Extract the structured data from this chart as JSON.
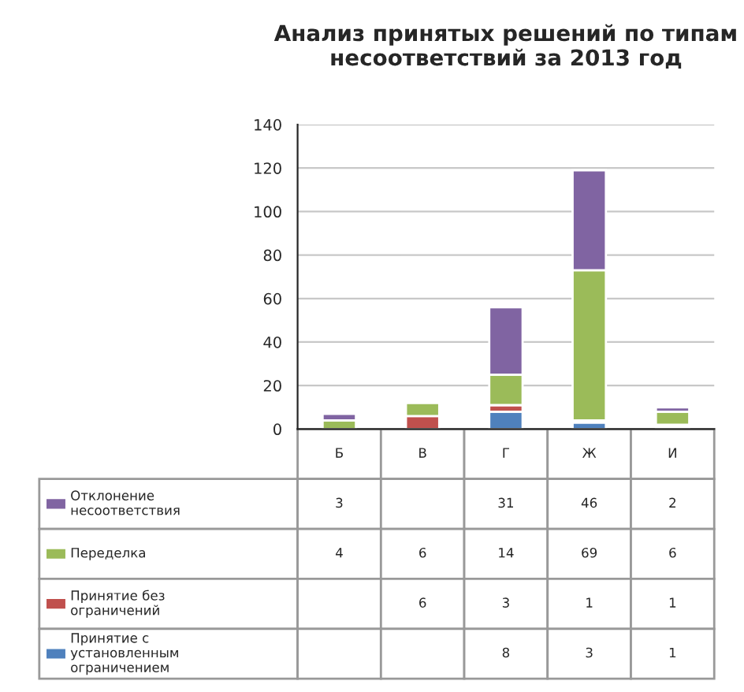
{
  "chart_data": {
    "type": "bar",
    "title": "Анализ принятых решений по типам несоответствий за 2013 год",
    "categories": [
      "Б",
      "В",
      "Г",
      "Ж",
      "И"
    ],
    "stacked": true,
    "series": [
      {
        "name": "Принятие с установленным ограничением",
        "color": "#4f81bd",
        "values": [
          null,
          null,
          8,
          3,
          1
        ]
      },
      {
        "name": "Принятие без ограничений",
        "color": "#c0504d",
        "values": [
          null,
          6,
          3,
          1,
          1
        ]
      },
      {
        "name": "Переделка",
        "color": "#9bbb59",
        "values": [
          4,
          6,
          14,
          69,
          6
        ]
      },
      {
        "name": "Отклонение несоответствия",
        "color": "#8064a2",
        "values": [
          3,
          null,
          31,
          46,
          2
        ]
      }
    ],
    "ylim": [
      0,
      140
    ],
    "yticks": [
      0,
      20,
      40,
      60,
      80,
      100,
      120,
      140
    ],
    "grid": "y",
    "legend": "bottom left",
    "data_labels": true
  }
}
